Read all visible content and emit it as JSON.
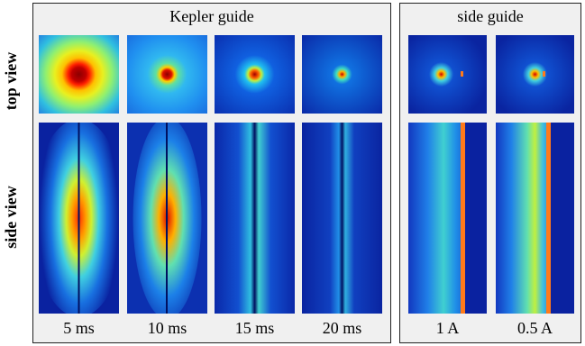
{
  "row_labels": {
    "top": "top view",
    "side": "side view"
  },
  "kepler": {
    "title": "Kepler guide",
    "captions": [
      "5 ms",
      "10 ms",
      "15 ms",
      "20 ms"
    ]
  },
  "side_guide": {
    "title": "side guide",
    "captions": [
      "1 A",
      "0.5 A"
    ]
  },
  "colors": {
    "background_blue": "#0a1a9a",
    "hot_red": "#8b0000",
    "stripe_orange": "#ff7a1a"
  }
}
